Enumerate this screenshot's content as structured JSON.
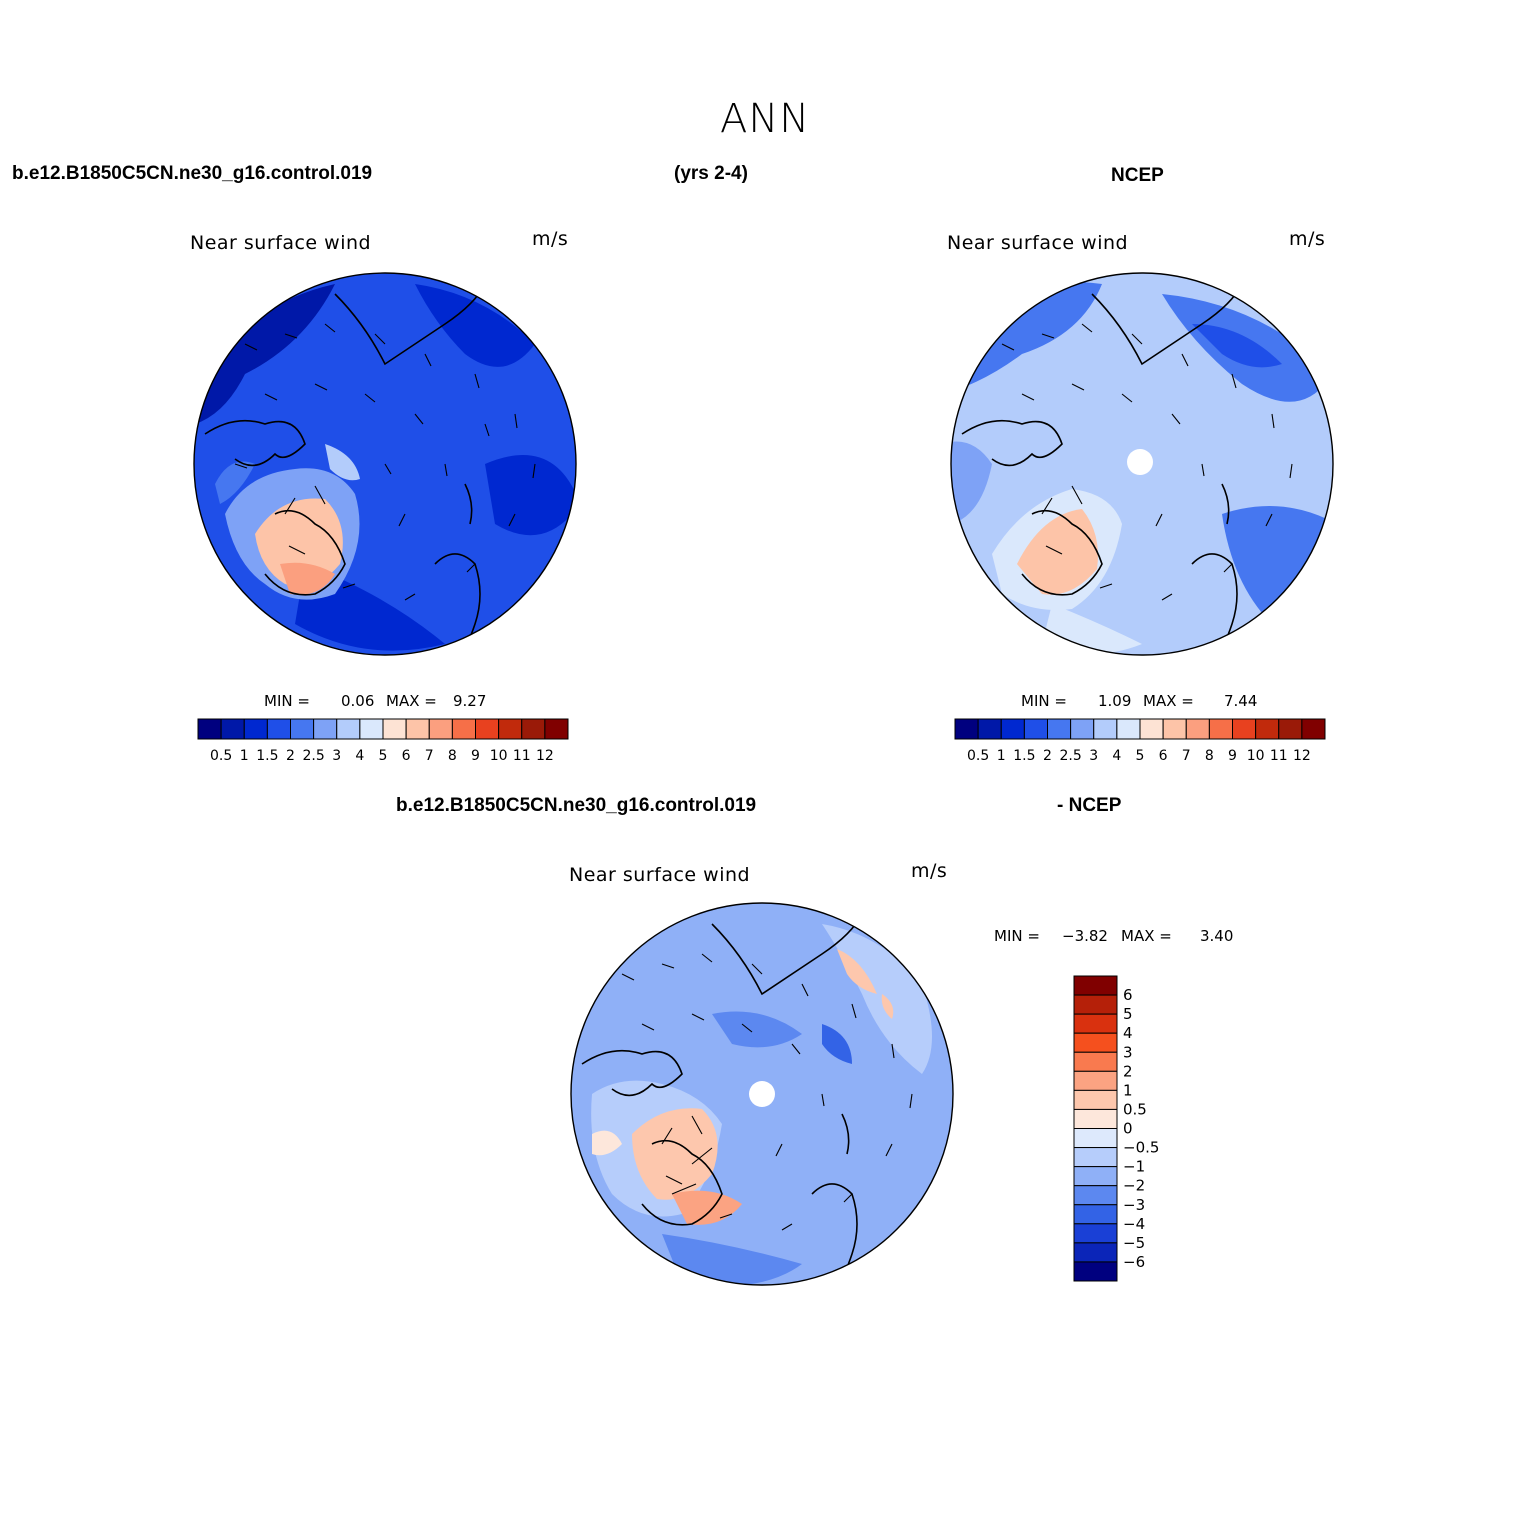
{
  "title": "ANN",
  "header": {
    "case_name": "b.e12.B1850C5CN.ne30_g16.control.019",
    "years": "(yrs 2-4)",
    "obs_name": "NCEP"
  },
  "diff_header": {
    "case_name": "b.e12.B1850C5CN.ne30_g16.control.019",
    "obs_name": "- NCEP"
  },
  "panels": {
    "model": {
      "variable": "Near surface wind",
      "units": "m/s",
      "min_label": "MIN =",
      "min_value": "0.06",
      "max_label": "MAX =",
      "max_value": "9.27"
    },
    "obs": {
      "variable": "Near surface wind",
      "units": "m/s",
      "min_label": "MIN =",
      "min_value": "1.09",
      "max_label": "MAX =",
      "max_value": "7.44"
    },
    "diff": {
      "variable": "Near surface wind",
      "units": "m/s",
      "min_label": "MIN =",
      "min_value": "−3.82",
      "max_label": "MAX =",
      "max_value": "3.40"
    }
  },
  "colorbar_abs": {
    "labels": [
      "0.5",
      "1",
      "1.5",
      "2",
      "2.5",
      "3",
      "4",
      "5",
      "6",
      "7",
      "8",
      "9",
      "10",
      "11",
      "12"
    ],
    "colors": [
      "#00007f",
      "#0018a8",
      "#0028d0",
      "#1f4fe8",
      "#4677f0",
      "#7ea2f6",
      "#b3ccfb",
      "#dae8fc",
      "#fde3d4",
      "#fdc4a8",
      "#fb9f7f",
      "#f66f48",
      "#e8411f",
      "#c12a0c",
      "#9a1a08",
      "#800000"
    ]
  },
  "colorbar_diff": {
    "labels": [
      "6",
      "5",
      "4",
      "3",
      "2",
      "1",
      "0.5",
      "0",
      "−0.5",
      "−1",
      "−2",
      "−3",
      "−4",
      "−5",
      "−6"
    ],
    "colors": [
      "#800000",
      "#b52009",
      "#d9310f",
      "#f5501e",
      "#f97a4f",
      "#fba382",
      "#fdc7ad",
      "#fde7db",
      "#dde9fc",
      "#b6cdfb",
      "#8fb0f7",
      "#5c88f0",
      "#3363e6",
      "#1a40d6",
      "#0b25b8",
      "#00007f"
    ]
  }
}
